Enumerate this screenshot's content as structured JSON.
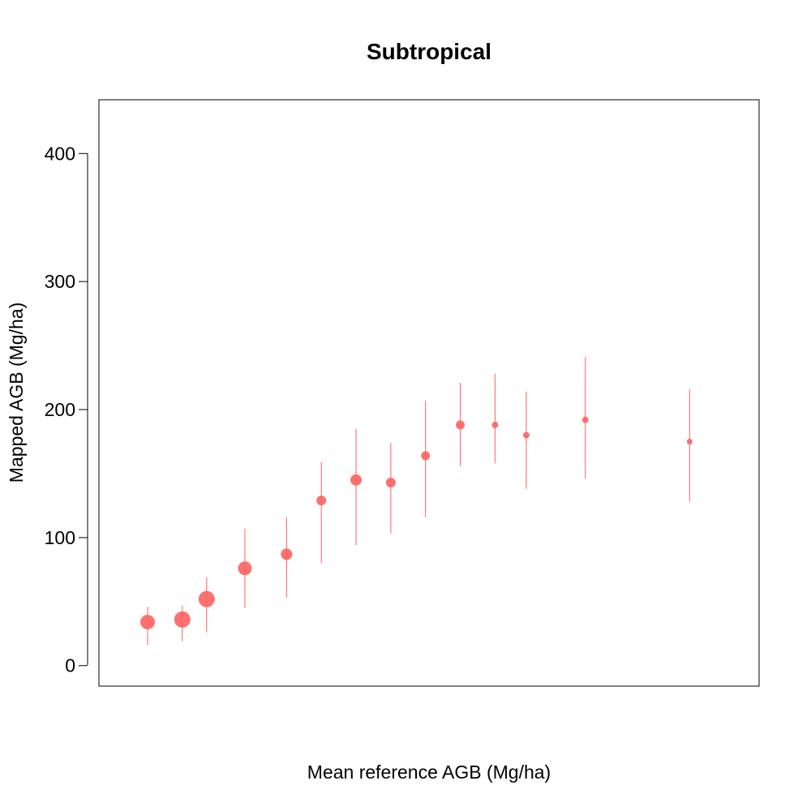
{
  "chart_data": {
    "type": "scatter",
    "title": "Subtropical",
    "xlabel": "Mean reference AGB (Mg/ha)",
    "ylabel": "Mapped AGB (Mg/ha)",
    "ylim": [
      -16,
      442
    ],
    "xlim": [
      0,
      19
    ],
    "x_ticks_shown": false,
    "y_ticks": [
      0,
      100,
      200,
      300,
      400
    ],
    "y_tick_labels": [
      "0",
      "100",
      "200",
      "300",
      "400"
    ],
    "grid": false,
    "legend": "none",
    "point_color": "#ff6060",
    "note_point_size": "marker size varies per point",
    "series": [
      {
        "x": [
          1.4,
          2.4,
          3.1,
          4.2,
          5.4,
          6.4,
          7.4,
          8.4,
          9.4,
          10.4,
          11.4,
          12.3,
          14.0,
          17.0
        ],
        "y": [
          34,
          36,
          52,
          76,
          87,
          129,
          145,
          143,
          164,
          188,
          188,
          180,
          192,
          175
        ],
        "y_low": [
          16,
          19,
          26,
          45,
          53,
          80,
          94,
          103,
          116,
          156,
          158,
          138,
          146,
          128
        ],
        "y_high": [
          46,
          47,
          69,
          107,
          116,
          159,
          185,
          174,
          207,
          221,
          228,
          214,
          241,
          216
        ],
        "size": [
          9,
          10,
          10,
          8.5,
          7,
          6,
          7,
          6,
          5.5,
          5.5,
          4,
          4,
          4,
          3.5
        ]
      }
    ]
  }
}
